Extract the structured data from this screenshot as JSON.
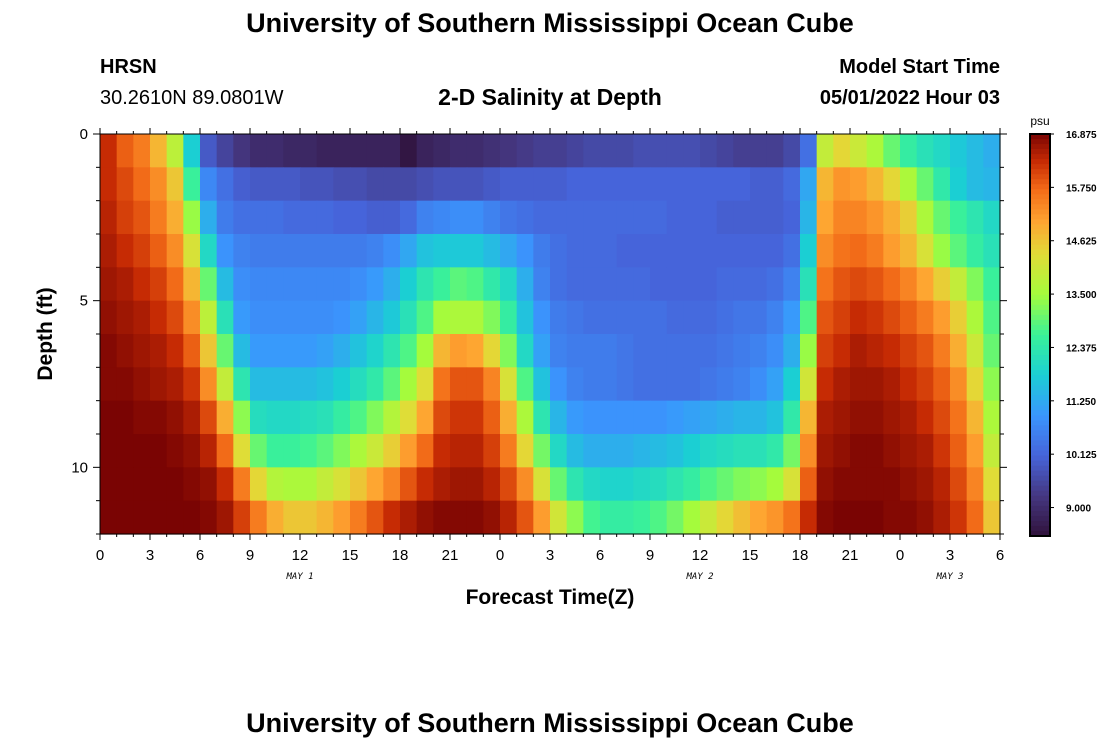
{
  "page": {
    "title": "University of Southern Mississippi Ocean Cube",
    "footer_title": "University of Southern Mississippi Ocean Cube",
    "station": "HRSN",
    "coords": "30.2610N  89.0801W",
    "subtitle": "2-D Salinity at Depth",
    "model_label": "Model Start Time",
    "model_time": "05/01/2022 Hour 03"
  },
  "chart_data": {
    "type": "heatmap",
    "title": "2-D Salinity at Depth",
    "xlabel": "Forecast Time(Z)",
    "ylabel": "Depth (ft)",
    "x_range": [
      0,
      54
    ],
    "y_range": [
      0,
      12
    ],
    "x_ticks": [
      {
        "v": 0,
        "label": "0"
      },
      {
        "v": 3,
        "label": "3"
      },
      {
        "v": 6,
        "label": "6"
      },
      {
        "v": 9,
        "label": "9"
      },
      {
        "v": 12,
        "label": "12"
      },
      {
        "v": 15,
        "label": "15"
      },
      {
        "v": 18,
        "label": "18"
      },
      {
        "v": 21,
        "label": "21"
      },
      {
        "v": 24,
        "label": "0"
      },
      {
        "v": 27,
        "label": "3"
      },
      {
        "v": 30,
        "label": "6"
      },
      {
        "v": 33,
        "label": "9"
      },
      {
        "v": 36,
        "label": "12"
      },
      {
        "v": 39,
        "label": "15"
      },
      {
        "v": 42,
        "label": "18"
      },
      {
        "v": 45,
        "label": "21"
      },
      {
        "v": 48,
        "label": "0"
      },
      {
        "v": 51,
        "label": "3"
      },
      {
        "v": 54,
        "label": "6"
      }
    ],
    "y_ticks": [
      {
        "v": 0,
        "label": "0"
      },
      {
        "v": 5,
        "label": "5"
      },
      {
        "v": 10,
        "label": "10"
      }
    ],
    "day_labels": [
      {
        "v": 12,
        "label": "MAY 1"
      },
      {
        "v": 36,
        "label": "MAY 2"
      },
      {
        "v": 51,
        "label": "MAY 3"
      }
    ],
    "colorbar": {
      "unit": "psu",
      "min": 8.4,
      "max": 16.875,
      "ticks": [
        "16.875",
        "15.750",
        "14.625",
        "13.500",
        "12.375",
        "11.250",
        "10.125",
        "9.000"
      ]
    },
    "salinity_psu_by_depth_row": [
      [
        16.3,
        15.8,
        15.5,
        14.8,
        13.8,
        11.8,
        9.9,
        9.5,
        9.2,
        9.0,
        9.0,
        8.9,
        8.9,
        8.8,
        8.8,
        8.8,
        8.8,
        8.8,
        8.5,
        8.8,
        8.9,
        9.0,
        9.0,
        9.1,
        9.2,
        9.3,
        9.4,
        9.4,
        9.5,
        9.6,
        9.6,
        9.6,
        9.7,
        9.7,
        9.7,
        9.7,
        9.6,
        9.5,
        9.4,
        9.4,
        9.4,
        9.6,
        10.3,
        13.9,
        14.4,
        14.0,
        13.6,
        13.0,
        12.5,
        12.2,
        12.0,
        11.7,
        11.5,
        11.3
      ],
      [
        16.3,
        16.0,
        15.7,
        15.3,
        14.6,
        12.6,
        10.7,
        10.3,
        10.0,
        9.9,
        9.9,
        9.9,
        9.8,
        9.8,
        9.7,
        9.7,
        9.6,
        9.6,
        9.6,
        9.7,
        9.8,
        9.8,
        9.8,
        9.9,
        10.0,
        10.0,
        10.0,
        10.0,
        10.1,
        10.1,
        10.1,
        10.1,
        10.1,
        10.1,
        10.1,
        10.1,
        10.1,
        10.1,
        10.1,
        10.0,
        10.0,
        10.2,
        11.2,
        14.8,
        15.2,
        15.1,
        14.8,
        14.4,
        13.6,
        13.0,
        12.4,
        11.8,
        11.5,
        11.4
      ],
      [
        16.4,
        16.1,
        15.9,
        15.5,
        14.9,
        13.4,
        11.3,
        10.5,
        10.3,
        10.3,
        10.3,
        10.2,
        10.2,
        10.2,
        10.1,
        10.1,
        10.0,
        10.0,
        10.2,
        10.6,
        10.7,
        10.8,
        10.8,
        10.6,
        10.4,
        10.3,
        10.2,
        10.2,
        10.2,
        10.2,
        10.2,
        10.2,
        10.2,
        10.2,
        10.1,
        10.1,
        10.1,
        10.0,
        10.0,
        10.0,
        10.0,
        10.1,
        11.4,
        15.0,
        15.4,
        15.4,
        15.2,
        14.9,
        14.5,
        13.6,
        13.0,
        12.6,
        12.3,
        12.0
      ],
      [
        16.5,
        16.3,
        16.1,
        15.8,
        15.3,
        14.2,
        12.0,
        10.9,
        10.6,
        10.5,
        10.5,
        10.5,
        10.5,
        10.5,
        10.5,
        10.5,
        10.6,
        10.8,
        11.2,
        11.6,
        11.7,
        11.7,
        11.7,
        11.5,
        11.2,
        10.9,
        10.5,
        10.3,
        10.2,
        10.2,
        10.2,
        10.1,
        10.1,
        10.1,
        10.1,
        10.1,
        10.1,
        10.1,
        10.1,
        10.1,
        10.1,
        10.3,
        11.8,
        15.3,
        15.6,
        15.7,
        15.5,
        15.1,
        14.8,
        14.2,
        13.4,
        12.9,
        12.5,
        12.2
      ],
      [
        16.6,
        16.5,
        16.3,
        16.1,
        15.7,
        14.8,
        13.0,
        11.5,
        10.8,
        10.7,
        10.7,
        10.7,
        10.7,
        10.7,
        10.7,
        10.8,
        11.0,
        11.3,
        11.8,
        12.3,
        12.6,
        12.9,
        12.8,
        12.4,
        12.0,
        11.3,
        10.6,
        10.3,
        10.2,
        10.2,
        10.2,
        10.2,
        10.2,
        10.1,
        10.1,
        10.1,
        10.1,
        10.2,
        10.2,
        10.2,
        10.3,
        10.6,
        12.2,
        15.6,
        15.9,
        16.0,
        15.9,
        15.7,
        15.4,
        15.0,
        14.5,
        13.9,
        13.2,
        12.6
      ],
      [
        16.7,
        16.6,
        16.5,
        16.3,
        16.0,
        15.3,
        13.8,
        12.2,
        11.0,
        10.8,
        10.8,
        10.8,
        10.8,
        10.8,
        10.9,
        11.1,
        11.4,
        11.7,
        12.2,
        12.8,
        13.5,
        13.6,
        13.6,
        13.2,
        12.5,
        11.6,
        10.9,
        10.5,
        10.4,
        10.3,
        10.3,
        10.3,
        10.3,
        10.3,
        10.2,
        10.2,
        10.2,
        10.3,
        10.4,
        10.4,
        10.6,
        11.0,
        12.8,
        15.9,
        16.1,
        16.3,
        16.2,
        16.0,
        15.8,
        15.5,
        15.1,
        14.5,
        13.6,
        12.8
      ],
      [
        16.8,
        16.7,
        16.6,
        16.5,
        16.3,
        15.8,
        14.6,
        13.0,
        11.5,
        11.0,
        11.0,
        11.0,
        11.0,
        11.1,
        11.3,
        11.6,
        11.9,
        12.3,
        12.8,
        13.5,
        14.8,
        15.1,
        15.0,
        14.4,
        13.2,
        12.0,
        11.1,
        10.6,
        10.5,
        10.5,
        10.5,
        10.4,
        10.3,
        10.3,
        10.3,
        10.3,
        10.3,
        10.4,
        10.5,
        10.6,
        10.8,
        11.3,
        13.4,
        16.1,
        16.3,
        16.5,
        16.4,
        16.3,
        16.1,
        15.9,
        15.5,
        14.9,
        14.0,
        13.0
      ],
      [
        16.8,
        16.8,
        16.7,
        16.6,
        16.5,
        16.2,
        15.3,
        13.9,
        12.3,
        11.5,
        11.5,
        11.5,
        11.5,
        11.6,
        11.8,
        12.1,
        12.4,
        12.9,
        13.5,
        14.3,
        15.6,
        15.9,
        15.9,
        15.4,
        14.2,
        12.8,
        11.6,
        10.9,
        10.6,
        10.5,
        10.5,
        10.4,
        10.3,
        10.3,
        10.3,
        10.3,
        10.4,
        10.5,
        10.6,
        10.8,
        11.1,
        11.8,
        14.1,
        16.3,
        16.5,
        16.6,
        16.6,
        16.5,
        16.3,
        16.1,
        15.8,
        15.3,
        14.4,
        13.3
      ],
      [
        16.9,
        16.9,
        16.8,
        16.8,
        16.7,
        16.5,
        16.0,
        14.9,
        13.3,
        12.1,
        12.0,
        12.0,
        12.1,
        12.2,
        12.5,
        12.8,
        13.2,
        13.7,
        14.3,
        15.0,
        16.0,
        16.2,
        16.2,
        15.8,
        14.9,
        13.6,
        12.3,
        11.4,
        11.0,
        10.9,
        10.9,
        10.9,
        10.9,
        10.9,
        11.0,
        11.1,
        11.2,
        11.3,
        11.4,
        11.4,
        11.6,
        12.4,
        14.8,
        16.5,
        16.6,
        16.7,
        16.7,
        16.6,
        16.5,
        16.3,
        16.0,
        15.6,
        14.8,
        13.6
      ],
      [
        16.9,
        16.9,
        16.9,
        16.9,
        16.8,
        16.7,
        16.4,
        15.7,
        14.3,
        13.0,
        12.6,
        12.6,
        12.7,
        12.9,
        13.2,
        13.6,
        14.0,
        14.5,
        15.1,
        15.7,
        16.3,
        16.4,
        16.4,
        16.1,
        15.5,
        14.4,
        13.1,
        12.0,
        11.5,
        11.3,
        11.3,
        11.3,
        11.4,
        11.5,
        11.6,
        11.8,
        12.0,
        12.1,
        12.2,
        12.2,
        12.4,
        13.1,
        15.3,
        16.6,
        16.7,
        16.8,
        16.8,
        16.7,
        16.6,
        16.5,
        16.2,
        15.8,
        15.1,
        13.9
      ],
      [
        16.9,
        16.9,
        16.9,
        16.9,
        16.9,
        16.8,
        16.7,
        16.3,
        15.5,
        14.4,
        13.7,
        13.6,
        13.6,
        13.9,
        14.2,
        14.6,
        15.0,
        15.4,
        15.9,
        16.3,
        16.5,
        16.6,
        16.6,
        16.4,
        16.0,
        15.3,
        14.2,
        13.0,
        12.3,
        12.0,
        11.9,
        11.9,
        12.0,
        12.1,
        12.3,
        12.5,
        12.8,
        13.0,
        13.2,
        13.3,
        13.5,
        14.2,
        15.8,
        16.7,
        16.8,
        16.8,
        16.8,
        16.8,
        16.7,
        16.6,
        16.4,
        16.0,
        15.4,
        14.3
      ],
      [
        16.9,
        16.9,
        16.9,
        16.9,
        16.9,
        16.9,
        16.8,
        16.6,
        16.1,
        15.5,
        14.9,
        14.6,
        14.6,
        14.8,
        15.1,
        15.5,
        15.9,
        16.3,
        16.5,
        16.7,
        16.8,
        16.8,
        16.8,
        16.7,
        16.4,
        15.9,
        15.1,
        14.1,
        13.3,
        12.7,
        12.5,
        12.5,
        12.6,
        12.8,
        13.1,
        13.5,
        14.0,
        14.4,
        14.7,
        15.0,
        15.2,
        15.6,
        16.3,
        16.8,
        16.9,
        16.9,
        16.9,
        16.8,
        16.8,
        16.7,
        16.5,
        16.2,
        15.7,
        14.6
      ]
    ]
  }
}
